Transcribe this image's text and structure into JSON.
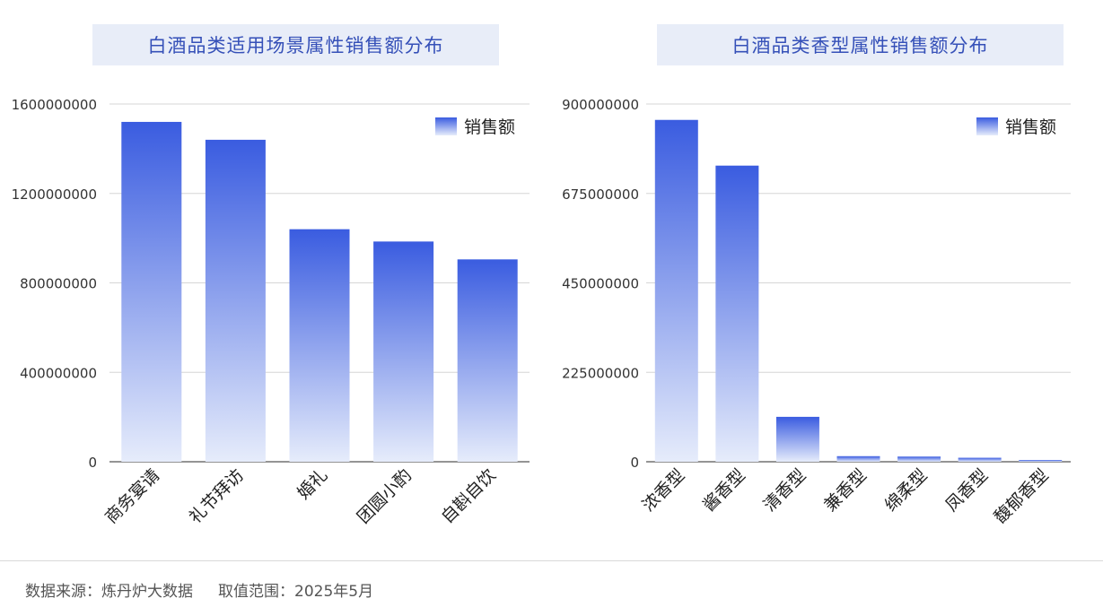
{
  "charts": [
    {
      "title": "白酒品类适用场景属性销售额分布",
      "legend": "销售额",
      "type": "bar",
      "categories": [
        "商务宴请",
        "礼节拜访",
        "婚礼",
        "团圆小酌",
        "自斟自饮"
      ],
      "values": [
        1520000000,
        1440000000,
        1040000000,
        985000000,
        905000000
      ],
      "ylim": [
        0,
        1600000000
      ],
      "yticks": [
        "0",
        "400000000",
        "800000000",
        "1200000000",
        "1600000000"
      ]
    },
    {
      "title": "白酒品类香型属性销售额分布",
      "legend": "销售额",
      "type": "bar",
      "categories": [
        "浓香型",
        "酱香型",
        "清香型",
        "兼香型",
        "绵柔型",
        "凤香型",
        "馥郁香型"
      ],
      "values": [
        860000000,
        745000000,
        113000000,
        14000000,
        13000000,
        10000000,
        4500000
      ],
      "ylim": [
        0,
        900000000
      ],
      "yticks": [
        "0",
        "225000000",
        "450000000",
        "675000000",
        "900000000"
      ]
    }
  ],
  "chart_data": [
    {
      "type": "bar",
      "title": "白酒品类适用场景属性销售额分布",
      "categories": [
        "商务宴请",
        "礼节拜访",
        "婚礼",
        "团圆小酌",
        "自斟自饮"
      ],
      "series": [
        {
          "name": "销售额",
          "values": [
            1520000000,
            1440000000,
            1040000000,
            985000000,
            905000000
          ]
        }
      ],
      "ylim": [
        0,
        1600000000
      ],
      "grid": true,
      "legend": "top-right"
    },
    {
      "type": "bar",
      "title": "白酒品类香型属性销售额分布",
      "categories": [
        "浓香型",
        "酱香型",
        "清香型",
        "兼香型",
        "绵柔型",
        "凤香型",
        "馥郁香型"
      ],
      "series": [
        {
          "name": "销售额",
          "values": [
            860000000,
            745000000,
            113000000,
            14000000,
            13000000,
            10000000,
            4500000
          ]
        }
      ],
      "ylim": [
        0,
        900000000
      ],
      "grid": true,
      "legend": "top-right"
    }
  ],
  "colors": {
    "bar_top": "#3a5ce0",
    "bar_bottom": "#e6ecfb",
    "title_bg": "#e8edf8",
    "title_text": "#3550b8"
  },
  "footer": {
    "source": "数据来源：炼丹炉大数据",
    "range": "取值范围：2025年5月"
  }
}
